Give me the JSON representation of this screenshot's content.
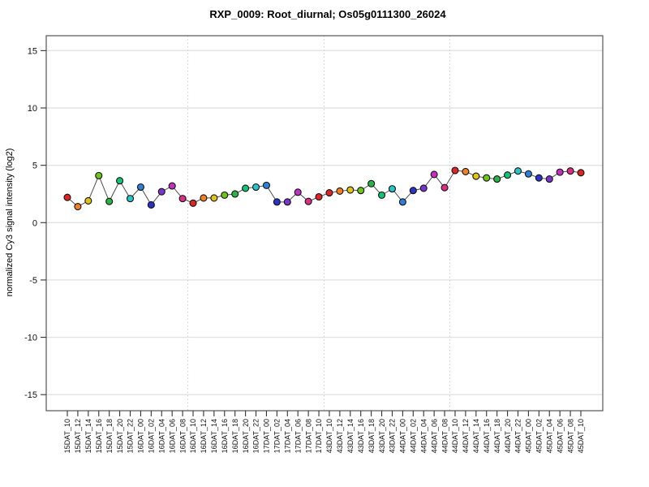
{
  "chart_data": {
    "type": "line",
    "title": "RXP_0009: Root_diurnal; Os05g0111300_26024",
    "xlabel": "",
    "ylabel": "normalized Cy3 signal intensity (log2)",
    "ylim": [
      -16.4,
      16.3
    ],
    "yticks": [
      -15,
      -10,
      -5,
      0,
      5,
      10,
      15
    ],
    "grid": "horizontal solid light gray at each y tick; dotted vertical separators between day cycles",
    "legend": "none",
    "x": [
      "15DAT_10",
      "15DAT_12",
      "15DAT_14",
      "15DAT_16",
      "15DAT_18",
      "15DAT_20",
      "15DAT_22",
      "16DAT_00",
      "16DAT_02",
      "16DAT_04",
      "16DAT_06",
      "16DAT_08",
      "16DAT_10",
      "16DAT_12",
      "16DAT_14",
      "16DAT_16",
      "16DAT_18",
      "16DAT_20",
      "16DAT_22",
      "17DAT_00",
      "17DAT_02",
      "17DAT_04",
      "17DAT_06",
      "17DAT_08",
      "17DAT_10",
      "43DAT_10",
      "43DAT_12",
      "43DAT_14",
      "43DAT_16",
      "43DAT_18",
      "43DAT_20",
      "43DAT_22",
      "44DAT_00",
      "44DAT_02",
      "44DAT_04",
      "44DAT_06",
      "44DAT_08",
      "44DAT_10",
      "44DAT_12",
      "44DAT_14",
      "44DAT_16",
      "44DAT_18",
      "44DAT_20",
      "44DAT_22",
      "45DAT_00",
      "45DAT_02",
      "45DAT_04",
      "45DAT_06",
      "45DAT_08",
      "45DAT_10"
    ],
    "values": [
      2.2,
      1.4,
      1.9,
      4.1,
      1.85,
      3.65,
      2.1,
      3.1,
      1.55,
      2.7,
      3.2,
      2.1,
      1.7,
      2.15,
      2.15,
      2.4,
      2.5,
      3.0,
      3.1,
      3.25,
      1.8,
      1.8,
      2.65,
      1.85,
      2.25,
      2.6,
      2.75,
      2.85,
      2.8,
      3.4,
      2.4,
      2.95,
      1.8,
      2.8,
      3.0,
      4.2,
      3.05,
      4.55,
      4.45,
      4.05,
      3.9,
      3.8,
      4.15,
      4.5,
      4.25,
      3.9,
      3.8,
      4.4,
      4.5,
      4.35
    ],
    "vline_before_index": [
      12,
      25,
      37
    ],
    "colors": {
      "cycle_by_hour": [
        "#E02424",
        "#F08020",
        "#E0C414",
        "#6EC41C",
        "#28B446",
        "#10C474",
        "#28C4C8",
        "#2E7FD8",
        "#2B32C8",
        "#7A35CC",
        "#C32FC3",
        "#DB2F86"
      ],
      "cycle_start_hour": 10,
      "series_line": "#4d4d4d",
      "marker_stroke": "#111111",
      "h_grid": "#e3e3e3",
      "v_grid_dotted": "#cccccc",
      "box": "#555555",
      "tick": "#333333"
    }
  }
}
